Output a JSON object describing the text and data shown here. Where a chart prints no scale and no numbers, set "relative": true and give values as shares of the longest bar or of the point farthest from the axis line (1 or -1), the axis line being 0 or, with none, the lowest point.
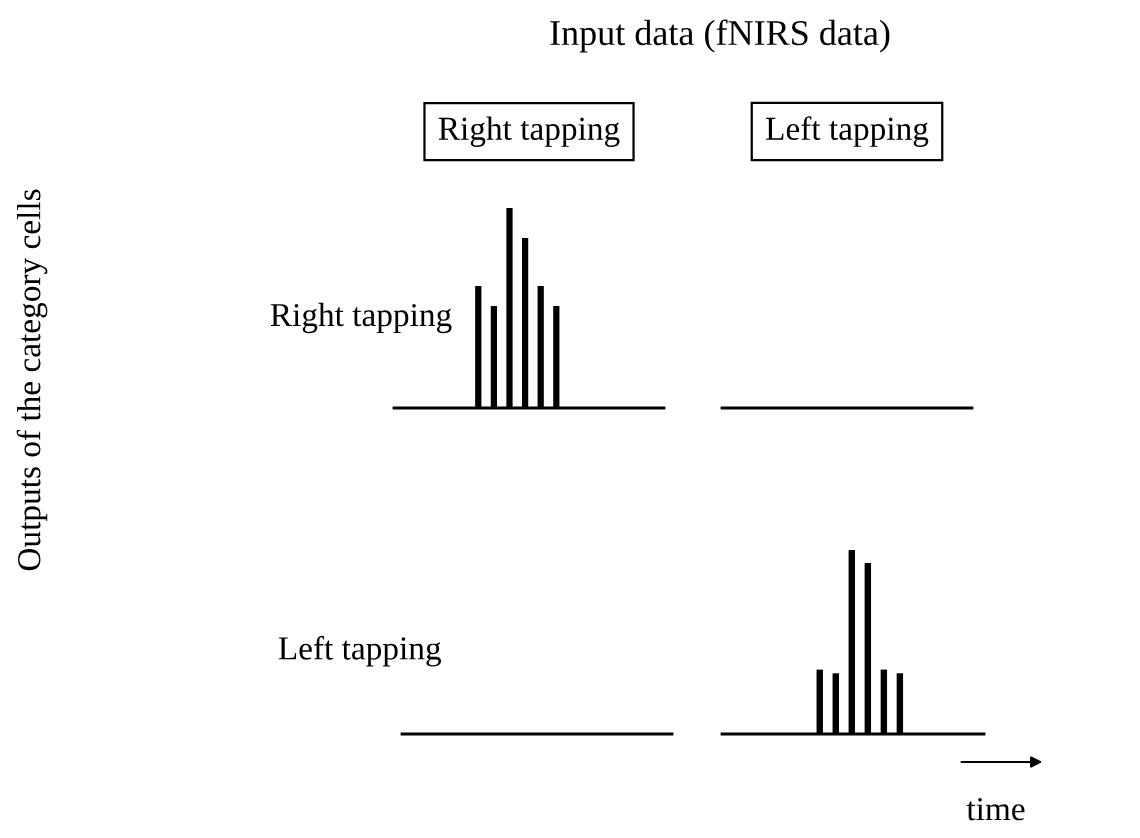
{
  "chart_data": [
    {
      "type": "bar",
      "relative": true,
      "title": "Right tapping",
      "ylabel": "Right tapping",
      "categories": [
        null,
        null,
        null,
        null,
        null,
        null
      ],
      "color": "#000000",
      "values": [
        0.61,
        0.51,
        1,
        0.85,
        0.61,
        0.51
      ],
      "annotations": [
        "Input data (fNIRS data)",
        "Outputs of the category cells",
        "time"
      ]
    },
    {
      "type": "other",
      "title": "Left tapping"
    },
    {
      "type": "other",
      "ylabel": "Left tapping"
    },
    {
      "type": "bar",
      "relative": true,
      "categories": [
        null,
        null,
        null,
        null,
        null,
        null
      ],
      "color": "#000000",
      "values": [
        0.35,
        0.33,
        1,
        0.93,
        0.35,
        0.33
      ]
    }
  ]
}
